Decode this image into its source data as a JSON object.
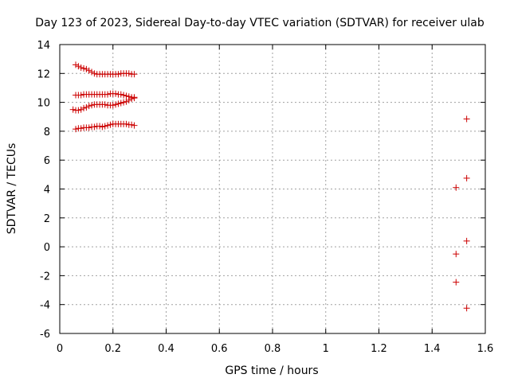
{
  "chart_data": {
    "type": "scatter",
    "title": "Day 123 of 2023, Sidereal Day-to-day VTEC variation (SDTVAR) for receiver ulab",
    "xlabel": "GPS time / hours",
    "ylabel": "SDTVAR / TECUs",
    "xlim": [
      0,
      1.6
    ],
    "ylim": [
      -6,
      14
    ],
    "xticks": [
      0,
      0.2,
      0.4,
      0.6,
      0.8,
      1,
      1.2,
      1.4,
      1.6
    ],
    "yticks": [
      -6,
      -4,
      -2,
      0,
      2,
      4,
      6,
      8,
      10,
      12,
      14
    ],
    "xtick_labels": [
      "0",
      "0.2",
      "0.4",
      "0.6",
      "0.8",
      "1",
      "1.2",
      "1.4",
      "1.6"
    ],
    "ytick_labels": [
      "-6",
      "-4",
      "-2",
      "0",
      "2",
      "4",
      "6",
      "8",
      "10",
      "12",
      "14"
    ],
    "grid": true,
    "marker": "+",
    "marker_color": "#cc0000",
    "series": [
      {
        "x": [
          0.06,
          0.07,
          0.08,
          0.09,
          0.1,
          0.11,
          0.12,
          0.13,
          0.14,
          0.15,
          0.16,
          0.17,
          0.18,
          0.19,
          0.2,
          0.21,
          0.22,
          0.23,
          0.24,
          0.25,
          0.26,
          0.27,
          0.28
        ],
        "y": [
          12.6,
          12.5,
          12.4,
          12.35,
          12.3,
          12.2,
          12.1,
          12.0,
          11.95,
          11.95,
          11.95,
          11.95,
          11.95,
          11.95,
          11.95,
          11.95,
          11.95,
          12.0,
          12.0,
          12.0,
          12.0,
          11.95,
          11.95
        ]
      },
      {
        "x": [
          0.06,
          0.07,
          0.08,
          0.09,
          0.1,
          0.11,
          0.12,
          0.13,
          0.14,
          0.15,
          0.16,
          0.17,
          0.18,
          0.19,
          0.2,
          0.21,
          0.22,
          0.23,
          0.24,
          0.25,
          0.26,
          0.27,
          0.28
        ],
        "y": [
          10.5,
          10.5,
          10.5,
          10.55,
          10.55,
          10.55,
          10.55,
          10.55,
          10.55,
          10.55,
          10.55,
          10.55,
          10.55,
          10.6,
          10.6,
          10.6,
          10.55,
          10.55,
          10.5,
          10.45,
          10.4,
          10.35,
          10.3
        ]
      },
      {
        "x": [
          0.05,
          0.06,
          0.07,
          0.08,
          0.09,
          0.1,
          0.11,
          0.12,
          0.13,
          0.14,
          0.15,
          0.16,
          0.17,
          0.18,
          0.19,
          0.2,
          0.21,
          0.22,
          0.23,
          0.24,
          0.25,
          0.26,
          0.27,
          0.28
        ],
        "y": [
          9.5,
          9.45,
          9.45,
          9.5,
          9.6,
          9.65,
          9.75,
          9.8,
          9.85,
          9.85,
          9.85,
          9.85,
          9.85,
          9.8,
          9.8,
          9.8,
          9.85,
          9.9,
          9.95,
          10.0,
          10.05,
          10.15,
          10.25,
          10.35
        ]
      },
      {
        "x": [
          0.06,
          0.07,
          0.08,
          0.09,
          0.1,
          0.11,
          0.12,
          0.13,
          0.14,
          0.15,
          0.16,
          0.17,
          0.18,
          0.19,
          0.2,
          0.21,
          0.22,
          0.23,
          0.24,
          0.25,
          0.26,
          0.27,
          0.28
        ],
        "y": [
          8.15,
          8.2,
          8.2,
          8.25,
          8.25,
          8.25,
          8.3,
          8.3,
          8.35,
          8.35,
          8.3,
          8.35,
          8.4,
          8.45,
          8.5,
          8.5,
          8.5,
          8.5,
          8.5,
          8.5,
          8.45,
          8.45,
          8.4
        ]
      },
      {
        "x": [
          1.53,
          1.49,
          1.53,
          1.53,
          1.49,
          1.49,
          1.53
        ],
        "y": [
          8.85,
          4.1,
          4.75,
          0.4,
          -0.5,
          -2.45,
          -4.25
        ]
      }
    ]
  }
}
